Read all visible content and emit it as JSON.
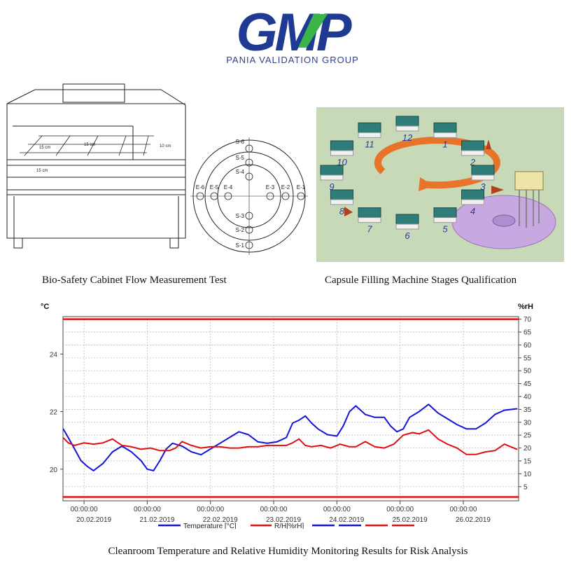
{
  "logo": {
    "text": "GMP",
    "subtitle": "PANIA VALIDATION GROUP",
    "colors": {
      "g": "#1f3a93",
      "m": "#1f3a93",
      "p": "#1f3a93",
      "accent": "#3bb54a"
    }
  },
  "cabinet": {
    "caption": "Bio-Safety Cabinet Flow Measurement Test",
    "dims": {
      "d1": "15 cm",
      "d2": "15 cm",
      "d3": "10 cm",
      "d4": "15 cm"
    },
    "points": {
      "s6": "S-6",
      "s5": "S-5",
      "s4": "S-4",
      "s3": "S-3",
      "s2": "S-2",
      "s1": "S-1",
      "e6": "E-6",
      "e5": "E-5",
      "e4": "E-4",
      "e3": "E-3",
      "e2": "E-2",
      "e1": "E-1"
    }
  },
  "capsule": {
    "caption": "Capsule Filling Machine Stages Qualification",
    "stations": [
      "12",
      "1",
      "2",
      "3",
      "4",
      "5",
      "6",
      "7",
      "8",
      "9",
      "10",
      "11"
    ],
    "colors": {
      "bg": "#c8d9b8",
      "station": "#2f7d78",
      "arrow": "#e8742a",
      "disc": "#c8a8e0"
    }
  },
  "chart_data": {
    "type": "line",
    "ylabel_left": "°C",
    "ylabel_right": "%rH",
    "yticks_left": [
      "20",
      "22",
      "24"
    ],
    "yticks_right": [
      "5",
      "10",
      "15",
      "20",
      "25",
      "30",
      "35",
      "40",
      "45",
      "50",
      "55",
      "60",
      "65",
      "70"
    ],
    "ylim_left": [
      18.9,
      25.3
    ],
    "ylim_right": [
      -0.5,
      71
    ],
    "x_time_labels": [
      "00:00:00",
      "00:00:00",
      "00:00:00",
      "00:00:00",
      "00:00:00",
      "00:00:00",
      "00:00:00"
    ],
    "x_date_labels": [
      "20.02.2019",
      "21.02.2019",
      "22.02.2019",
      "23.02.2019",
      "24.02.2019",
      "25.02.2019",
      "26.02.2019"
    ],
    "xlim_days": [
      "19.02.2019 16:00",
      "26.02.2019 21:00"
    ],
    "grid": true,
    "legend_position": "bottom",
    "limits_right": [
      70,
      1
    ],
    "limit_color": "#e01010",
    "series": [
      {
        "name": "Temperature [°C]",
        "axis": "left",
        "color": "#1414d8",
        "x": [
          19.67,
          19.75,
          19.85,
          19.95,
          20.05,
          20.15,
          20.3,
          20.45,
          20.6,
          20.75,
          20.9,
          21.0,
          21.1,
          21.2,
          21.3,
          21.4,
          21.55,
          21.7,
          21.85,
          22.0,
          22.15,
          22.3,
          22.45,
          22.6,
          22.75,
          22.9,
          23.05,
          23.2,
          23.3,
          23.4,
          23.5,
          23.6,
          23.7,
          23.85,
          24.0,
          24.1,
          24.2,
          24.3,
          24.45,
          24.6,
          24.75,
          24.85,
          24.95,
          25.05,
          25.15,
          25.3,
          25.45,
          25.6,
          25.75,
          25.9,
          26.05,
          26.2,
          26.35,
          26.5,
          26.65,
          26.85
        ],
        "y": [
          21.4,
          21.1,
          20.7,
          20.3,
          20.1,
          19.95,
          20.2,
          20.6,
          20.8,
          20.6,
          20.3,
          20.0,
          19.95,
          20.3,
          20.7,
          20.9,
          20.8,
          20.6,
          20.5,
          20.7,
          20.9,
          21.1,
          21.3,
          21.2,
          20.95,
          20.9,
          20.95,
          21.1,
          21.6,
          21.7,
          21.85,
          21.6,
          21.4,
          21.2,
          21.15,
          21.5,
          22.0,
          22.2,
          21.9,
          21.8,
          21.8,
          21.5,
          21.3,
          21.4,
          21.8,
          22.0,
          22.25,
          21.95,
          21.75,
          21.55,
          21.4,
          21.4,
          21.6,
          21.9,
          22.05,
          22.1
        ]
      },
      {
        "name": "R/H[%rH]",
        "axis": "right",
        "color": "#e01010",
        "x": [
          19.67,
          19.75,
          19.85,
          20.0,
          20.15,
          20.3,
          20.45,
          20.6,
          20.75,
          20.9,
          21.05,
          21.2,
          21.35,
          21.45,
          21.55,
          21.7,
          21.85,
          22.0,
          22.15,
          22.3,
          22.45,
          22.6,
          22.75,
          22.9,
          23.05,
          23.2,
          23.3,
          23.4,
          23.5,
          23.6,
          23.75,
          23.9,
          24.05,
          24.2,
          24.3,
          24.45,
          24.6,
          24.75,
          24.9,
          25.05,
          25.2,
          25.3,
          25.45,
          25.6,
          25.75,
          25.9,
          26.05,
          26.2,
          26.35,
          26.5,
          26.65,
          26.85
        ],
        "y": [
          24,
          22,
          21,
          22,
          21.5,
          22,
          23.5,
          21,
          20.5,
          19.5,
          20,
          19,
          19,
          20,
          22.5,
          21,
          20,
          20.5,
          20.5,
          20,
          20,
          20.5,
          20.5,
          21,
          21,
          21,
          22,
          23.5,
          21,
          20.5,
          21,
          20,
          21.5,
          20.5,
          20.5,
          22.5,
          20.5,
          20,
          21.5,
          25,
          26,
          25.5,
          27,
          23.5,
          21.5,
          20,
          17.5,
          17.5,
          18.5,
          19,
          21.5,
          19.5
        ]
      }
    ]
  }
}
